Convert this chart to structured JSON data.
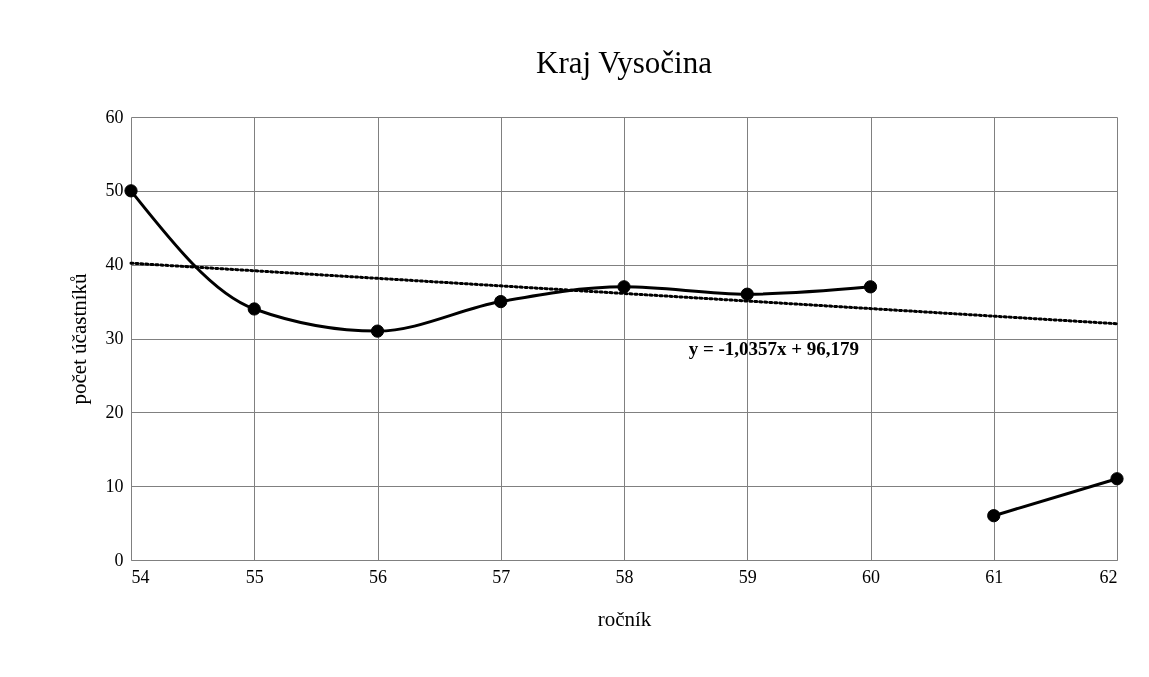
{
  "chart_data": {
    "type": "line",
    "title": "Kraj Vysočina",
    "xlabel": "ročník",
    "ylabel": "počet účastníků",
    "series": [
      {
        "color": "#000000",
        "x": [
          54,
          55,
          56,
          57,
          58,
          59,
          60
        ],
        "values": [
          50,
          34,
          31,
          35,
          37,
          36,
          37
        ]
      },
      {
        "color": "#000000",
        "x": [
          61,
          62
        ],
        "values": [
          6,
          11
        ]
      },
      {
        "color": "#000000",
        "x": [
          54,
          62
        ],
        "values": [
          40.2,
          32.0
        ],
        "marker": "none",
        "line_style": "dotted"
      }
    ],
    "annotations": [
      "y = -1,0357x + 96,179"
    ],
    "xlim": [
      54,
      62
    ],
    "xticks": [
      54,
      55,
      56,
      57,
      58,
      59,
      60,
      61,
      62
    ],
    "ylim": [
      0,
      60
    ],
    "yticks": [
      0,
      10,
      20,
      30,
      40,
      50,
      60
    ],
    "grid": true,
    "marker": "circle",
    "line_style": "solid"
  }
}
